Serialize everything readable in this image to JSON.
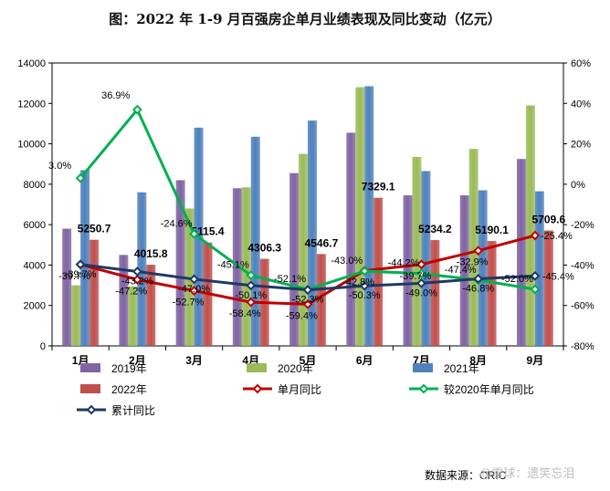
{
  "chart_data": {
    "type": "bar",
    "title": "图：2022 年 1-9 月百强房企单月业绩表现及同比变动（亿元）",
    "categories": [
      "1月",
      "2月",
      "3月",
      "4月",
      "5月",
      "6月",
      "7月",
      "8月",
      "9月"
    ],
    "y_left": {
      "min": 0,
      "max": 14000,
      "step": 2000,
      "ticks": [
        "0",
        "2000",
        "4000",
        "6000",
        "8000",
        "10000",
        "12000",
        "14000"
      ]
    },
    "y_right": {
      "min": -80,
      "max": 60,
      "step": 20,
      "ticks": [
        "-80%",
        "-60%",
        "-40%",
        "-20%",
        "0%",
        "20%",
        "40%",
        "60%"
      ]
    },
    "bar_series": [
      {
        "name": "2019年",
        "color": "#8064a2",
        "values": [
          5800,
          4500,
          8200,
          7800,
          8550,
          10550,
          7450,
          7450,
          9250
        ]
      },
      {
        "name": "2020年",
        "color": "#9bbb59",
        "values": [
          3000,
          2950,
          6800,
          7850,
          9500,
          12800,
          9350,
          9750,
          11900
        ]
      },
      {
        "name": "2021年",
        "color": "#4f81bd",
        "values": [
          8700,
          7600,
          10800,
          10350,
          11150,
          12850,
          8650,
          7700,
          7650
        ]
      },
      {
        "name": "2022年",
        "color": "#c0504d",
        "values": [
          5250.7,
          4015.8,
          5115.4,
          4306.3,
          4546.7,
          7329.1,
          5234.2,
          5190.1,
          5709.6
        ]
      }
    ],
    "bar_value_labels": [
      "5250.7",
      "4015.8",
      "5115.4",
      "4306.3",
      "4546.7",
      "7329.1",
      "5234.2",
      "5190.1",
      "5709.6"
    ],
    "line_series": [
      {
        "name": "单月同比",
        "color": "#c00000",
        "axis": "right",
        "values": [
          -39.7,
          -47.2,
          -52.7,
          -58.4,
          -59.4,
          -42.8,
          -39.7,
          -32.9,
          -25.4
        ],
        "labels": [
          "-39.7%",
          "-47.2%",
          "-52.7%",
          "-58.4%",
          "-59.4%",
          "-42.8%",
          "-39.7%",
          "-32.9%",
          "-25.4%"
        ]
      },
      {
        "name": "较2020年单月同比",
        "color": "#00b050",
        "axis": "right",
        "values": [
          3.0,
          36.9,
          -24.6,
          -45.1,
          -52.1,
          -43.0,
          -44.2,
          -47.4,
          -52.0
        ],
        "labels": [
          "3.0%",
          "36.9%",
          "-24.6%",
          "-45.1%",
          "-52.1%",
          "-43.0%",
          "-44.2%",
          "-47.4%",
          "-52.0%"
        ]
      },
      {
        "name": "累计同比",
        "color": "#1f3864",
        "axis": "right",
        "values": [
          -39.7,
          -43.2,
          -47.0,
          -50.1,
          -52.3,
          -50.3,
          -49.0,
          -46.8,
          -45.4
        ],
        "labels": [
          "-39.7%",
          "-43.2%",
          "-47.0%",
          "-50.1%",
          "-52.3%",
          "-50.3%",
          "-49.0%",
          "-46.8%",
          "-45.4%"
        ]
      }
    ],
    "legend_position": "bottom",
    "grid": false
  },
  "source": "数据来源：CRIC",
  "watermark": "@雪球：遗笑忘泪"
}
